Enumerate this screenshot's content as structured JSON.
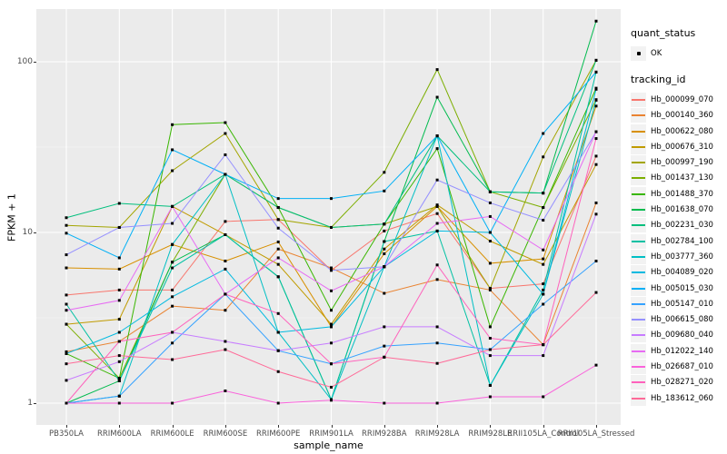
{
  "figure": {
    "bg": "#FFFFFF",
    "panel_bg": "#EBEBEB",
    "grid_color": "#FFFFFF",
    "tick_label_color": "#4D4D4D",
    "point_color": "#000000"
  },
  "y_axis": {
    "title": "FPKM + 1",
    "ticks": [
      "100",
      "10",
      "1"
    ],
    "scale": "log10"
  },
  "x_axis": {
    "title": "sample_name"
  },
  "legend": {
    "quant_status_title": "quant_status",
    "quant_status_items": [
      {
        "label": "OK",
        "marker": "black-point"
      }
    ],
    "tracking_id_title": "tracking_id"
  },
  "chart_data": {
    "type": "line",
    "title": "",
    "xlabel": "sample_name",
    "ylabel": "FPKM + 1",
    "y_scale": "log10",
    "ylim": [
      1,
      200
    ],
    "y_major_gridlines": [
      1,
      10,
      100
    ],
    "y_minor_gridlines": [
      3.162,
      31.62
    ],
    "legend_position": "right",
    "points": "black marker at every sample for every series (quant_status = OK)",
    "x": [
      "PB350LA",
      "RRIM600LA",
      "RRIM600LE",
      "RRIM600SE",
      "RRIM600PE",
      "RRIM901LA",
      "RRIM928BA",
      "RRIM928LA",
      "RRIM928LE",
      "RRII105LA_Control",
      "RRII105LA_Stressed"
    ],
    "series": [
      {
        "name": "Hb_000099_070",
        "color": "#F8766D",
        "values": [
          4.3,
          4.6,
          4.6,
          11.6,
          11.9,
          6.0,
          10.2,
          12.9,
          4.7,
          5.0,
          28
        ]
      },
      {
        "name": "Hb_000140_360",
        "color": "#EA8331",
        "values": [
          2.0,
          2.3,
          3.7,
          3.5,
          8.0,
          6.2,
          4.4,
          5.3,
          4.6,
          2.2,
          14.9
        ]
      },
      {
        "name": "Hb_000622_080",
        "color": "#D89000",
        "values": [
          6.2,
          6.1,
          8.5,
          6.8,
          8.8,
          2.8,
          7.5,
          14.2,
          6.6,
          7.0,
          55
        ]
      },
      {
        "name": "Hb_000676_310",
        "color": "#C09B00",
        "values": [
          2.9,
          3.1,
          14.2,
          9.7,
          6.5,
          2.9,
          8.0,
          14.5,
          8.9,
          6.5,
          25
        ]
      },
      {
        "name": "Hb_000997_190",
        "color": "#A3A500",
        "values": [
          11.0,
          10.7,
          23,
          38,
          11.9,
          10.7,
          11.2,
          14.2,
          4.7,
          27.7,
          102
        ]
      },
      {
        "name": "Hb_001437_130",
        "color": "#7CAE00",
        "values": [
          2.9,
          1.4,
          6.7,
          21.9,
          14.0,
          10.7,
          22.5,
          90,
          17.3,
          14.0,
          60
        ]
      },
      {
        "name": "Hb_001488_370",
        "color": "#39B600",
        "values": [
          1.95,
          1.4,
          42.8,
          44,
          14,
          3.5,
          11.2,
          31,
          2.8,
          14,
          70
        ]
      },
      {
        "name": "Hb_001638_070",
        "color": "#00BB4E",
        "values": [
          1.0,
          1.35,
          6.7,
          9.7,
          5.5,
          1.05,
          8.85,
          62,
          17.3,
          17,
          173
        ]
      },
      {
        "name": "Hb_002231_030",
        "color": "#00BF7D",
        "values": [
          12.2,
          14.8,
          14.2,
          21.9,
          14,
          10.7,
          11.2,
          36.8,
          17.3,
          17,
          102
        ]
      },
      {
        "name": "Hb_002784_100",
        "color": "#00C1A3",
        "values": [
          3.8,
          1.35,
          6.2,
          9.7,
          5.5,
          1.05,
          8.85,
          10.2,
          1.27,
          4.6,
          87
        ]
      },
      {
        "name": "Hb_003777_360",
        "color": "#00BFC4",
        "values": [
          1.0,
          1.1,
          8.5,
          21.9,
          2.6,
          1.05,
          6.3,
          36.8,
          1.27,
          4.35,
          59.5
        ]
      },
      {
        "name": "Hb_004089_020",
        "color": "#00BAE0",
        "values": [
          1.95,
          2.6,
          4.2,
          6.1,
          2.6,
          2.8,
          6.3,
          10.2,
          10.0,
          4.35,
          69
        ]
      },
      {
        "name": "Hb_005015_030",
        "color": "#00B0F6",
        "values": [
          9.9,
          7.1,
          30.5,
          21.9,
          15.8,
          15.8,
          17.5,
          36.8,
          10.0,
          38,
          87
        ]
      },
      {
        "name": "Hb_005147_010",
        "color": "#35A2FF",
        "values": [
          1.0,
          1.1,
          2.25,
          4.35,
          2.03,
          1.7,
          2.16,
          2.25,
          2.06,
          3.8,
          6.8
        ]
      },
      {
        "name": "Hb_006615_080",
        "color": "#9590FF",
        "values": [
          7.4,
          10.7,
          11.3,
          28.5,
          10.6,
          6.0,
          6.3,
          20.3,
          14.9,
          11.8,
          38.9
        ]
      },
      {
        "name": "Hb_009680_040",
        "color": "#C77CFF",
        "values": [
          1.36,
          1.75,
          2.6,
          2.3,
          2.03,
          2.25,
          2.8,
          2.8,
          1.9,
          1.9,
          12.8
        ]
      },
      {
        "name": "Hb_012022_140",
        "color": "#E76BF3",
        "values": [
          3.5,
          4.0,
          14.2,
          4.35,
          7.1,
          4.55,
          6.3,
          11.3,
          12.4,
          7.9,
          38.9
        ]
      },
      {
        "name": "Hb_026687_010",
        "color": "#FA62DB",
        "values": [
          1.0,
          1.0,
          1.0,
          1.18,
          1.0,
          1.04,
          1.0,
          1.0,
          1.09,
          1.09,
          1.67
        ]
      },
      {
        "name": "Hb_028271_020",
        "color": "#FF62BC",
        "values": [
          1.0,
          2.3,
          2.6,
          4.35,
          3.35,
          1.7,
          1.86,
          6.45,
          2.4,
          2.2,
          35.5
        ]
      },
      {
        "name": "Hb_183612_060",
        "color": "#FF6A98",
        "values": [
          1.7,
          1.9,
          1.8,
          2.06,
          1.53,
          1.24,
          1.86,
          1.71,
          2.06,
          2.2,
          4.45
        ]
      }
    ]
  }
}
